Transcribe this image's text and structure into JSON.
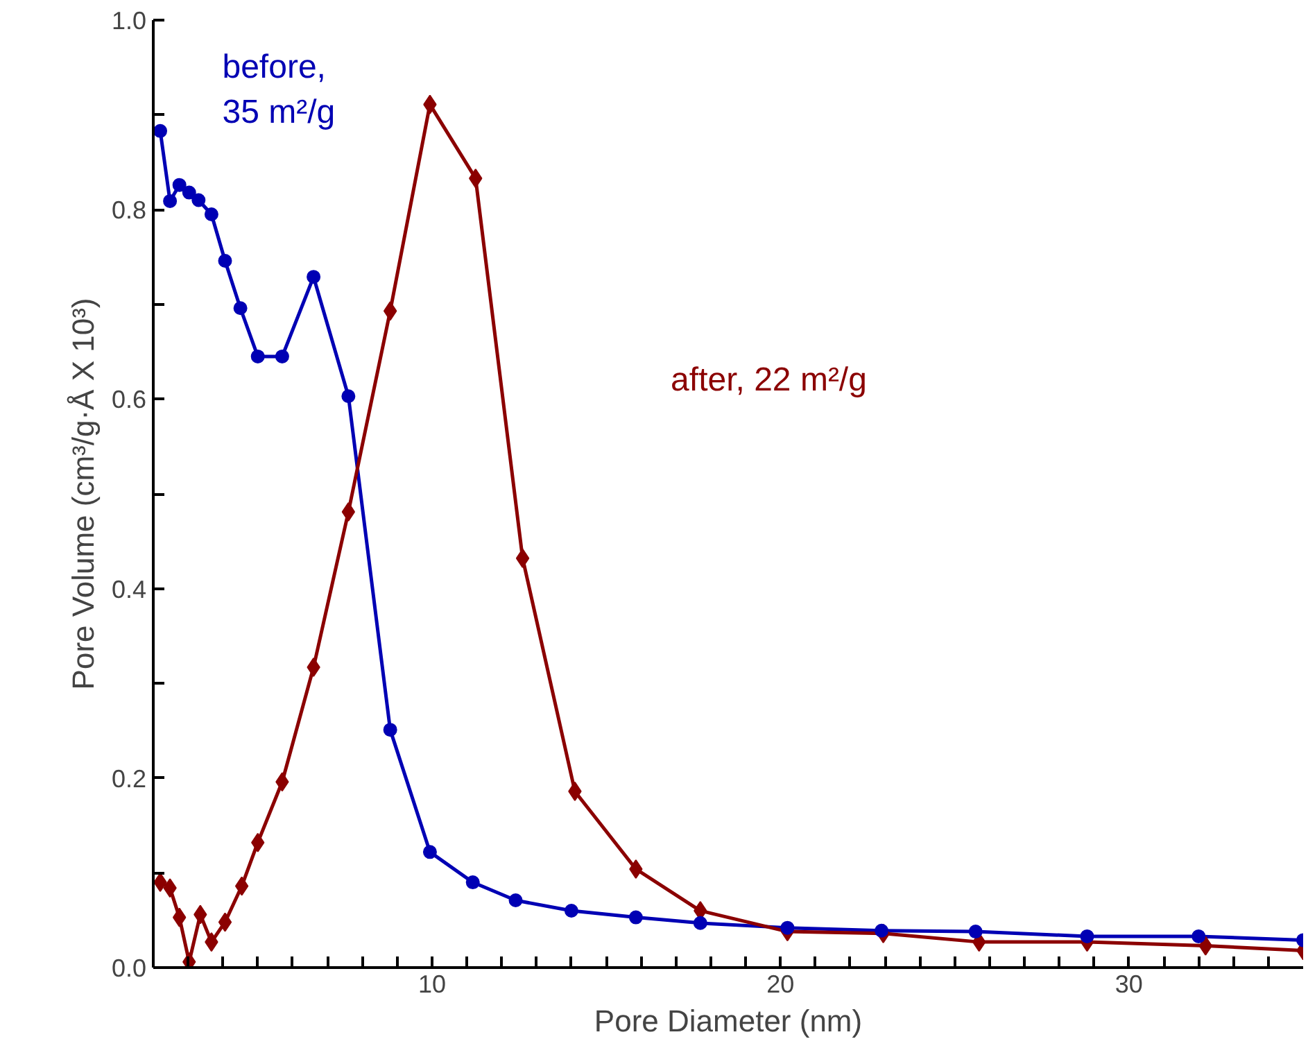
{
  "chart_data": {
    "type": "line",
    "xlabel": "Pore Diameter (nm)",
    "ylabel": "Pore Volume (cm³/g·Å X 10³)",
    "xlim": [
      2,
      35
    ],
    "ylim": [
      0,
      1.0
    ],
    "xticks": [
      {
        "value": 3,
        "label": null
      },
      {
        "value": 4,
        "label": null
      },
      {
        "value": 5,
        "label": null
      },
      {
        "value": 6,
        "label": null
      },
      {
        "value": 7,
        "label": null
      },
      {
        "value": 8,
        "label": null
      },
      {
        "value": 9,
        "label": null
      },
      10,
      {
        "value": 11,
        "label": null
      },
      {
        "value": 12,
        "label": null
      },
      {
        "value": 13,
        "label": null
      },
      {
        "value": 14,
        "label": null
      },
      {
        "value": 15,
        "label": null
      },
      {
        "value": 16,
        "label": null
      },
      {
        "value": 17,
        "label": null
      },
      {
        "value": 18,
        "label": null
      },
      {
        "value": 19,
        "label": null
      },
      20,
      {
        "value": 21,
        "label": null
      },
      {
        "value": 22,
        "label": null
      },
      {
        "value": 23,
        "label": null
      },
      {
        "value": 24,
        "label": null
      },
      {
        "value": 25,
        "label": null
      },
      {
        "value": 26,
        "label": null
      },
      {
        "value": 27,
        "label": null
      },
      {
        "value": 28,
        "label": null
      },
      {
        "value": 29,
        "label": null
      },
      30,
      {
        "value": 31,
        "label": null
      },
      {
        "value": 32,
        "label": null
      },
      {
        "value": 33,
        "label": null
      },
      {
        "value": 34,
        "label": null
      }
    ],
    "yticks": [
      {
        "value": 0,
        "label": "0.0"
      },
      {
        "value": 0.1,
        "label": null
      },
      {
        "value": 0.2,
        "label": "0.2"
      },
      {
        "value": 0.3,
        "label": null
      },
      {
        "value": 0.4,
        "label": "0.4"
      },
      {
        "value": 0.5,
        "label": null
      },
      {
        "value": 0.6,
        "label": "0.6"
      },
      {
        "value": 0.7,
        "label": null
      },
      {
        "value": 0.8,
        "label": "0.8"
      },
      {
        "value": 0.9,
        "label": null
      },
      {
        "value": 1.0,
        "label": "1.0"
      }
    ],
    "grid": false,
    "legend": false,
    "series": [
      {
        "name": "before,\n35 m²/g",
        "color": "#0000b4",
        "marker": "circle",
        "x": [
          2.2,
          2.48,
          2.75,
          3.03,
          3.3,
          3.67,
          4.06,
          4.5,
          5.0,
          5.7,
          6.6,
          7.6,
          8.8,
          9.94,
          11.17,
          12.4,
          14.0,
          15.85,
          17.7,
          20.2,
          22.9,
          25.6,
          28.8,
          32.0,
          35.0
        ],
        "values": [
          0.883,
          0.809,
          0.826,
          0.818,
          0.81,
          0.795,
          0.746,
          0.696,
          0.645,
          0.645,
          0.729,
          0.603,
          0.251,
          0.122,
          0.09,
          0.071,
          0.06,
          0.053,
          0.047,
          0.042,
          0.039,
          0.038,
          0.033,
          0.033,
          0.029
        ]
      },
      {
        "name": "after, 22 m²/g",
        "color": "#8b0000",
        "marker": "diamond",
        "x": [
          2.2,
          2.48,
          2.75,
          3.03,
          3.35,
          3.67,
          4.06,
          4.54,
          5.0,
          5.7,
          6.6,
          7.6,
          8.8,
          9.94,
          11.25,
          12.6,
          14.1,
          15.85,
          17.7,
          20.2,
          22.95,
          25.7,
          28.8,
          32.2,
          35.0
        ],
        "values": [
          0.09,
          0.084,
          0.053,
          0.006,
          0.056,
          0.027,
          0.048,
          0.086,
          0.132,
          0.196,
          0.317,
          0.481,
          0.693,
          0.911,
          0.833,
          0.432,
          0.186,
          0.104,
          0.06,
          0.038,
          0.036,
          0.027,
          0.027,
          0.023,
          0.018
        ]
      }
    ]
  }
}
